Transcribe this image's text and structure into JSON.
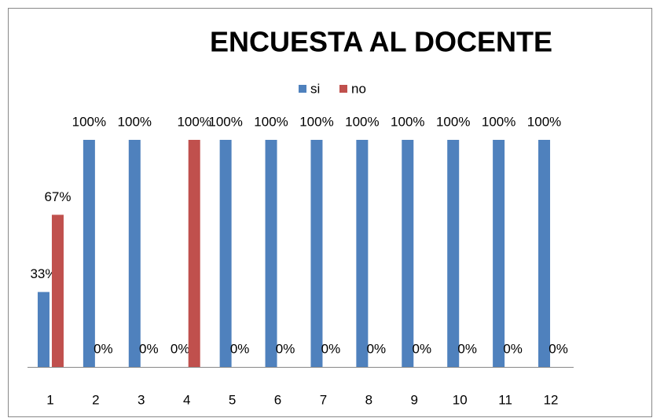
{
  "chart_data": {
    "type": "bar",
    "title": "ENCUESTA AL DOCENTE",
    "categories": [
      "1",
      "2",
      "3",
      "4",
      "5",
      "6",
      "7",
      "8",
      "9",
      "10",
      "11",
      "12"
    ],
    "series": [
      {
        "name": "si",
        "color": "#4f81bd",
        "values": [
          33,
          100,
          100,
          0,
          100,
          100,
          100,
          100,
          100,
          100,
          100,
          100
        ],
        "value_labels": [
          "33%",
          "100%",
          "100%",
          "0%",
          "100%",
          "100%",
          "100%",
          "100%",
          "100%",
          "100%",
          "100%",
          "100%"
        ]
      },
      {
        "name": "no",
        "color": "#c0504d",
        "values": [
          67,
          0,
          0,
          100,
          0,
          0,
          0,
          0,
          0,
          0,
          0,
          0
        ],
        "value_labels": [
          "67%",
          "0%",
          "0%",
          "100%",
          "0%",
          "0%",
          "0%",
          "0%",
          "0%",
          "0%",
          "0%",
          "0%"
        ]
      }
    ],
    "ylim": [
      0,
      100
    ],
    "legend": "top"
  }
}
